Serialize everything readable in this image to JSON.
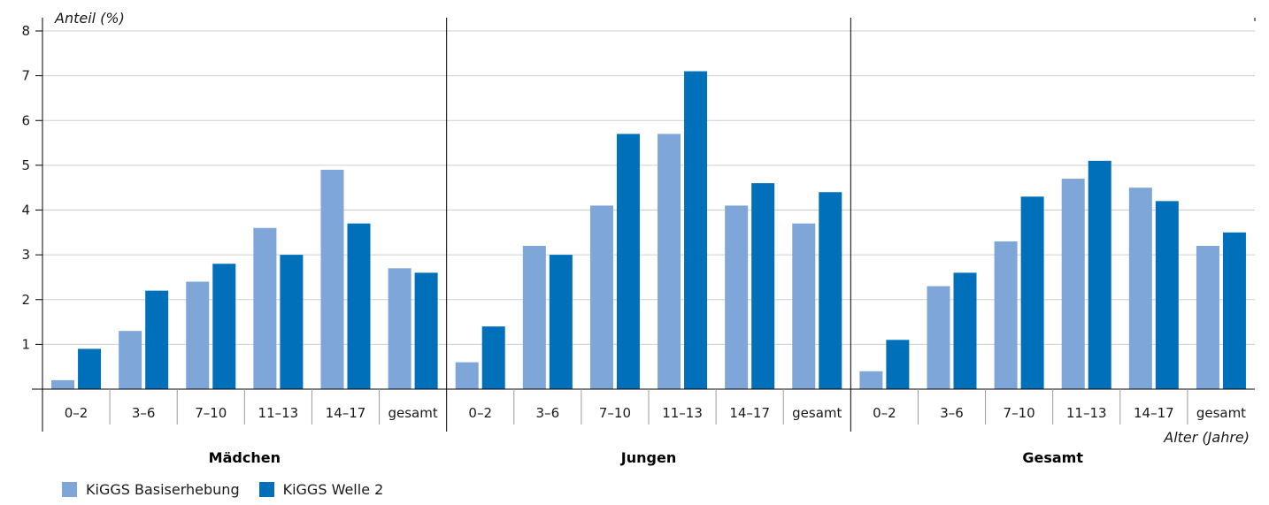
{
  "chart_data": {
    "type": "bar",
    "ylabel": "Anteil (%)",
    "xlabel": "Alter (Jahre)",
    "ylim": [
      0,
      8
    ],
    "yticks": [
      1,
      2,
      3,
      4,
      5,
      6,
      7,
      8
    ],
    "grid": true,
    "legend_position": "bottom-left",
    "categories": [
      "0–2",
      "3–6",
      "7–10",
      "11–13",
      "14–17",
      "gesamt"
    ],
    "groups": [
      {
        "title": "Mädchen",
        "series": [
          {
            "name": "KiGGS Basiserhebung",
            "values": [
              0.2,
              1.3,
              2.4,
              3.6,
              4.9,
              2.7
            ]
          },
          {
            "name": "KiGGS Welle 2",
            "values": [
              0.9,
              2.2,
              2.8,
              3.0,
              3.7,
              2.6
            ]
          }
        ]
      },
      {
        "title": "Jungen",
        "series": [
          {
            "name": "KiGGS Basiserhebung",
            "values": [
              0.6,
              3.2,
              4.1,
              5.7,
              4.1,
              3.7
            ]
          },
          {
            "name": "KiGGS Welle 2",
            "values": [
              1.4,
              3.0,
              5.7,
              7.1,
              4.6,
              4.4
            ]
          }
        ]
      },
      {
        "title": "Gesamt",
        "series": [
          {
            "name": "KiGGS Basiserhebung",
            "values": [
              0.4,
              2.3,
              3.3,
              4.7,
              4.5,
              3.2
            ]
          },
          {
            "name": "KiGGS Welle 2",
            "values": [
              1.1,
              2.6,
              4.3,
              5.1,
              4.2,
              3.5
            ]
          }
        ]
      }
    ],
    "legend": [
      {
        "name": "KiGGS Basiserhebung",
        "color": "#7ea6d8"
      },
      {
        "name": "KiGGS Welle 2",
        "color": "#0070ba"
      }
    ]
  }
}
